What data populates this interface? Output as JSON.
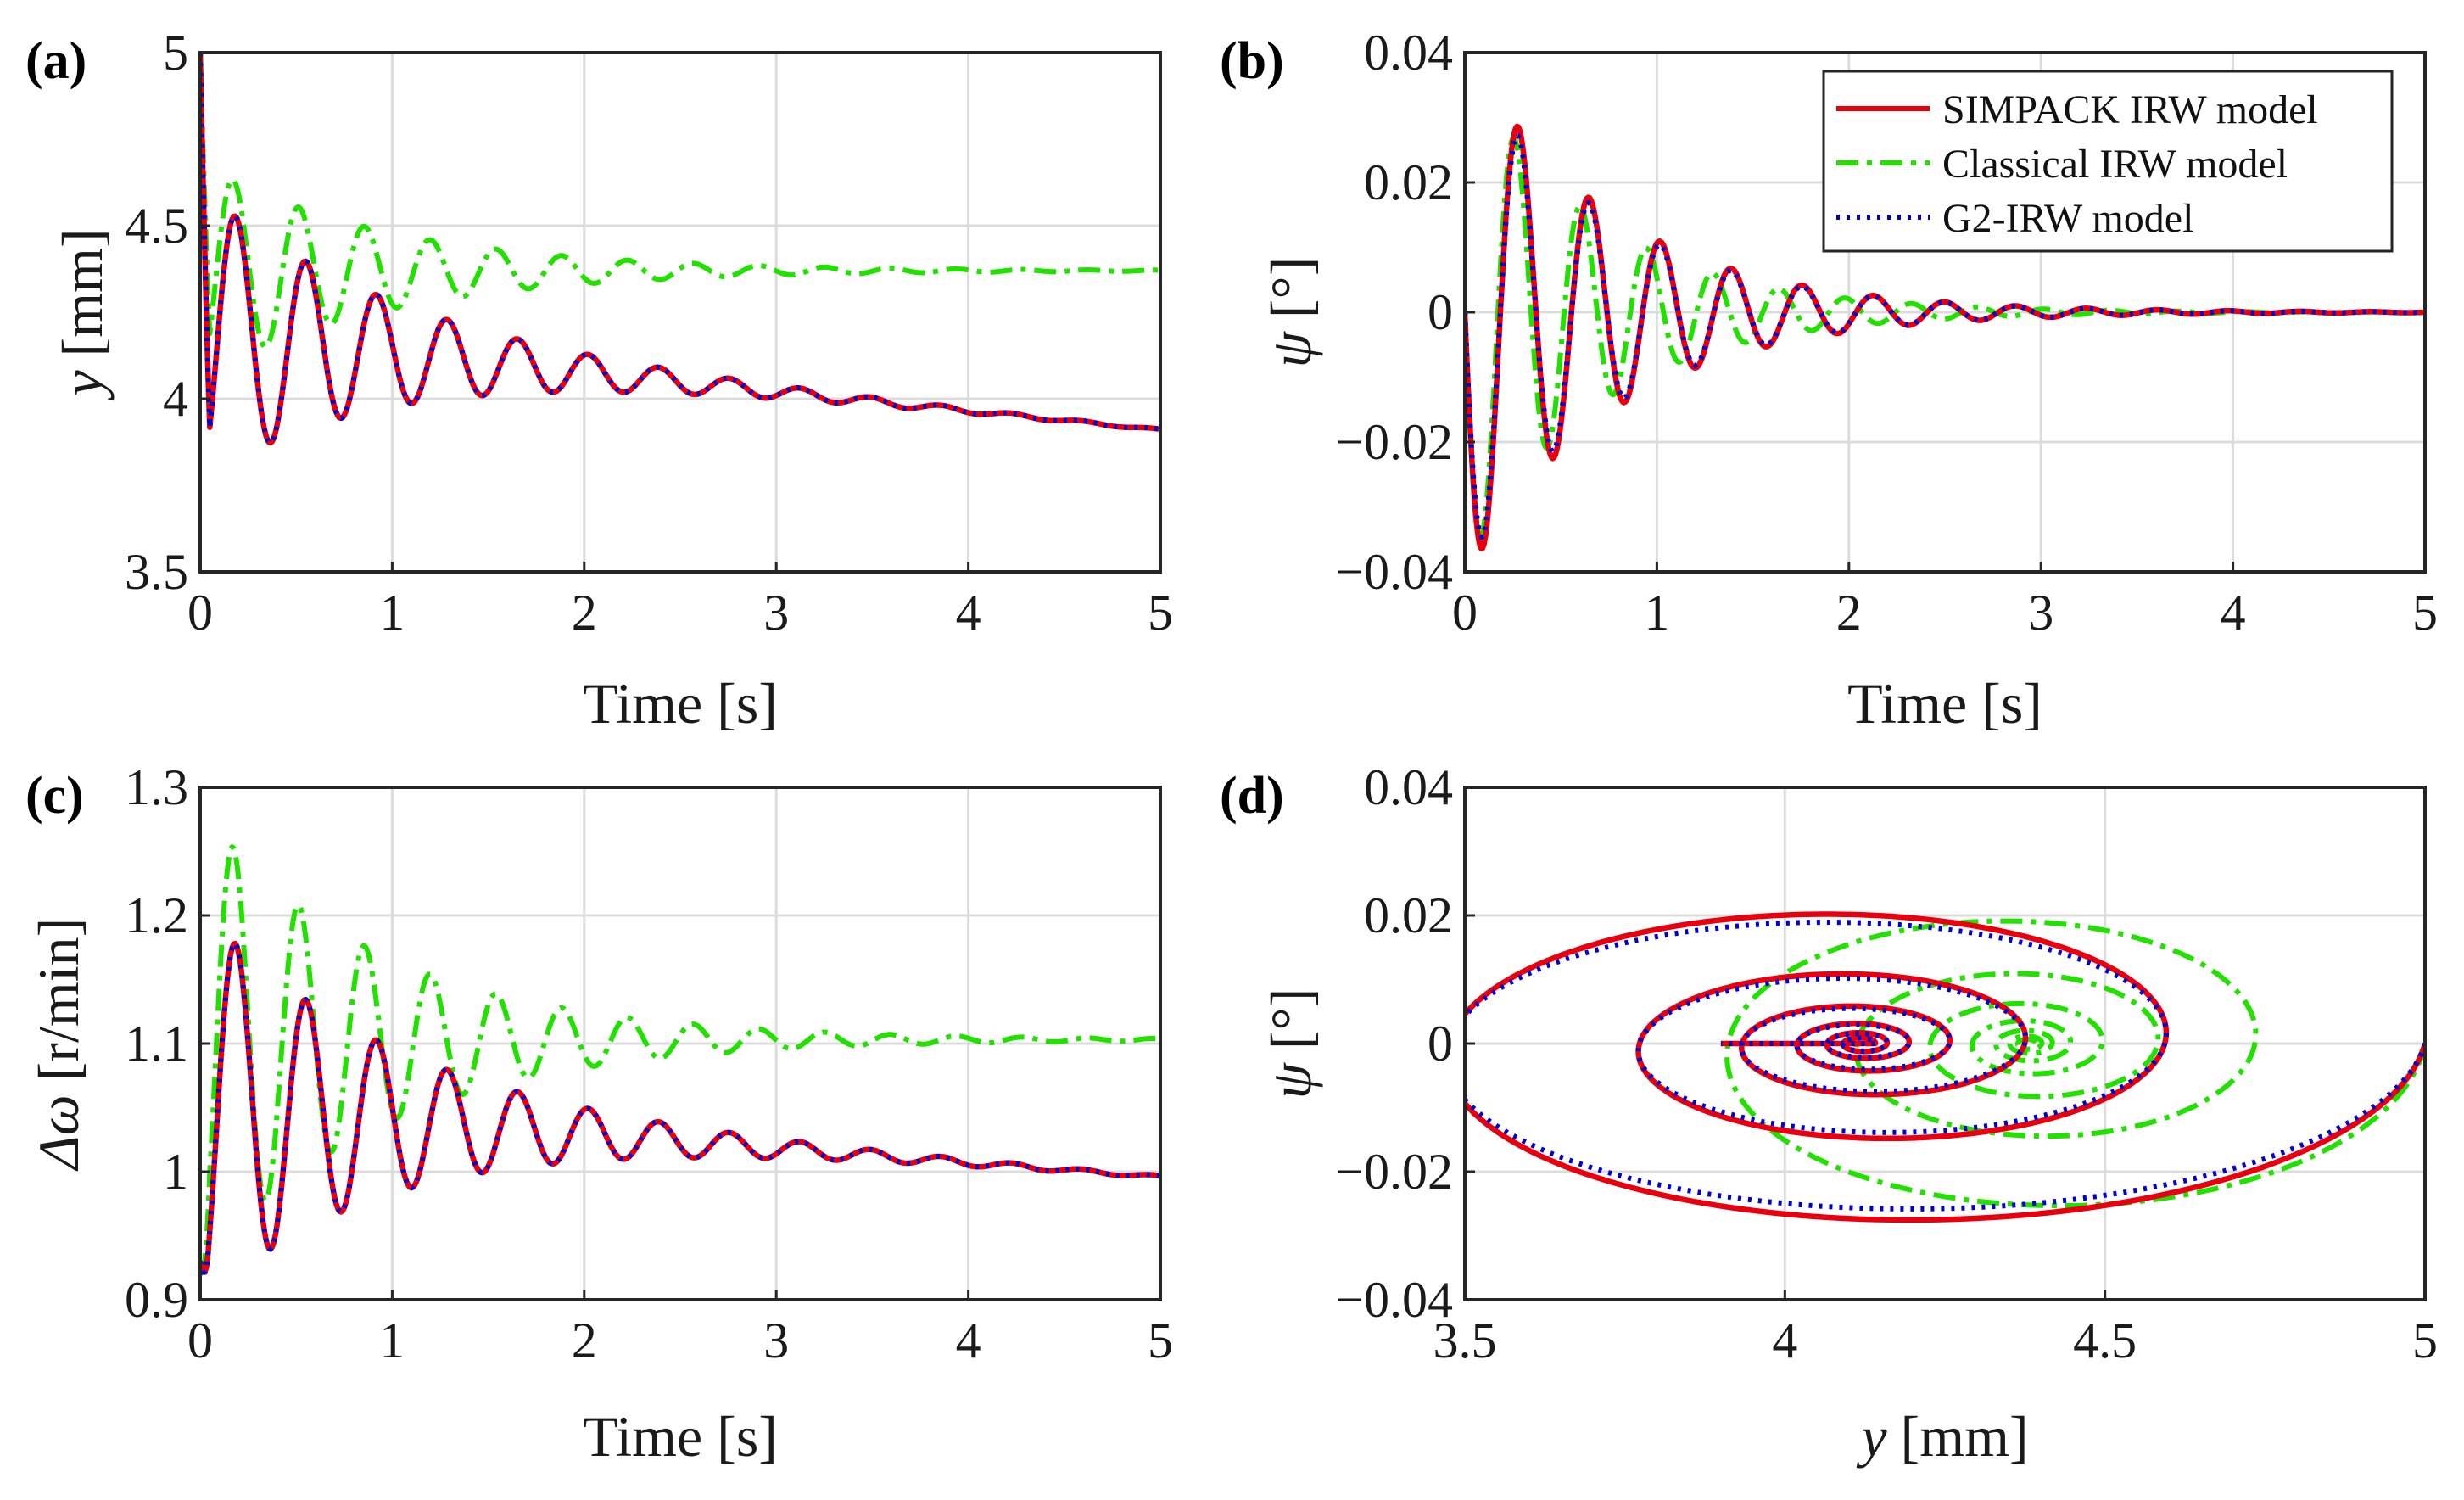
{
  "figure": {
    "panels": [
      {
        "id": "a",
        "label": "(a)"
      },
      {
        "id": "b",
        "label": "(b)"
      },
      {
        "id": "c",
        "label": "(c)"
      },
      {
        "id": "d",
        "label": "(d)"
      }
    ]
  },
  "legend": {
    "entries": [
      {
        "name": "SIMPACK IRW model",
        "color": "#e8000f",
        "style": "solid"
      },
      {
        "name": "Classical IRW model",
        "color": "#22e000",
        "style": "dash-dot"
      },
      {
        "name": "G2-IRW model",
        "color": "#0000d0",
        "style": "dotted"
      }
    ]
  },
  "colors": {
    "simpack": "#e8000f",
    "classical": "#22e000",
    "g2": "#0000d0",
    "grid": "#dcdcdc",
    "axis": "#262626"
  },
  "chart_data": [
    {
      "panel": "(a)",
      "type": "line",
      "xlabel": "Time [s]",
      "ylabel_var": "y",
      "ylabel_unit": "[mm]",
      "xlim": [
        0,
        5
      ],
      "ylim": [
        3.5,
        5
      ],
      "xticks": [
        0,
        1,
        2,
        3,
        4,
        5
      ],
      "xtick_labels": [
        "0",
        "1",
        "2",
        "3",
        "4",
        "5"
      ],
      "yticks": [
        3.5,
        4,
        4.5,
        5
      ],
      "ytick_labels": [
        "3.5",
        "4",
        "4.5",
        "5"
      ],
      "grid": true,
      "series": [
        {
          "name": "SIMPACK IRW model",
          "model": {
            "kind": "damped",
            "t": [
              0,
              5
            ],
            "start": 5.0,
            "end": 3.9,
            "drift": 0.055,
            "base": 4.13,
            "amp": -0.85,
            "freq": 2.72,
            "damp": 1.02,
            "phase": 0.25
          }
        },
        {
          "name": "Classical IRW model",
          "model": {
            "kind": "damped",
            "t": [
              0,
              5
            ],
            "start": 5.0,
            "end": 4.37,
            "drift": 0.0,
            "base": 4.37,
            "amp": -0.63,
            "freq": 2.92,
            "damp": 1.05,
            "phase": 0.2
          }
        },
        {
          "name": "G2-IRW model",
          "model": {
            "kind": "damped",
            "t": [
              0,
              5
            ],
            "start": 5.0,
            "end": 3.9,
            "drift": 0.055,
            "base": 4.13,
            "amp": -0.85,
            "freq": 2.72,
            "damp": 1.02,
            "phase": 0.25
          }
        }
      ]
    },
    {
      "panel": "(b)",
      "type": "line",
      "xlabel": "Time [s]",
      "ylabel_var": "ψ",
      "ylabel_unit": "[°]",
      "xlim": [
        0,
        5
      ],
      "ylim": [
        -0.04,
        0.04
      ],
      "xticks": [
        0,
        1,
        2,
        3,
        4,
        5
      ],
      "xtick_labels": [
        "0",
        "1",
        "2",
        "3",
        "4",
        "5"
      ],
      "yticks": [
        -0.04,
        -0.02,
        0,
        0.02,
        0.04
      ],
      "ytick_labels": [
        "−0.04",
        "−0.02",
        "0",
        "0.02",
        "0.04"
      ],
      "grid": true,
      "legend_position": "top-right",
      "series": [
        {
          "name": "SIMPACK IRW model",
          "model": {
            "kind": "sine",
            "amp": -0.041,
            "freq": 2.7,
            "damp": 1.3
          }
        },
        {
          "name": "Classical IRW model",
          "model": {
            "kind": "sine",
            "amp": -0.039,
            "freq": 2.9,
            "damp": 1.45
          }
        },
        {
          "name": "G2-IRW model",
          "model": {
            "kind": "sine",
            "amp": -0.039,
            "freq": 2.7,
            "damp": 1.3
          }
        }
      ]
    },
    {
      "panel": "(c)",
      "type": "line",
      "xlabel": "Time [s]",
      "ylabel_var": "Δω",
      "ylabel_unit": "[r/min]",
      "xlim": [
        0,
        5
      ],
      "ylim": [
        0.9,
        1.3
      ],
      "xticks": [
        0,
        1,
        2,
        3,
        4,
        5
      ],
      "xtick_labels": [
        "0",
        "1",
        "2",
        "3",
        "4",
        "5"
      ],
      "yticks": [
        0.9,
        1.0,
        1.1,
        1.2,
        1.3
      ],
      "ytick_labels": [
        "0.9",
        "1",
        "1.1",
        "1.2",
        "1.3"
      ],
      "grid": true,
      "series": [
        {
          "name": "SIMPACK IRW model",
          "model": {
            "kind": "damped",
            "t": [
              0,
              5
            ],
            "start": 0.93,
            "end": 0.985,
            "drift": 0.011,
            "base": 1.04,
            "amp": -0.31,
            "freq": 2.72,
            "damp": 1.0,
            "phase": -0.35
          }
        },
        {
          "name": "Classical IRW model",
          "model": {
            "kind": "damped",
            "t": [
              0,
              5
            ],
            "start": 0.92,
            "end": 1.103,
            "drift": 0.0,
            "base": 1.103,
            "amp": -0.36,
            "freq": 2.92,
            "damp": 1.05,
            "phase": -0.35
          }
        },
        {
          "name": "G2-IRW model",
          "model": {
            "kind": "damped",
            "t": [
              0,
              5
            ],
            "start": 0.93,
            "end": 0.987,
            "drift": 0.011,
            "base": 1.04,
            "amp": -0.31,
            "freq": 2.72,
            "damp": 1.0,
            "phase": -0.35
          }
        }
      ]
    },
    {
      "panel": "(d)",
      "type": "line",
      "xlabel_var": "y",
      "xlabel_unit": "[mm]",
      "ylabel_var": "ψ",
      "ylabel_unit": "[°]",
      "xlim": [
        3.5,
        5
      ],
      "ylim": [
        -0.04,
        0.04
      ],
      "xticks": [
        3.5,
        4,
        4.5,
        5
      ],
      "xtick_labels": [
        "3.5",
        "4",
        "4.5",
        "5"
      ],
      "yticks": [
        -0.04,
        -0.02,
        0,
        0.02,
        0.04
      ],
      "ytick_labels": [
        "−0.04",
        "−0.02",
        "0",
        "0.02",
        "0.04"
      ],
      "grid": true,
      "series": [
        {
          "name": "SIMPACK IRW model",
          "model": {
            "kind": "phase",
            "center": [
              4.12,
              0.0
            ],
            "start": [
              5.0,
              0.0
            ],
            "rx": 0.88,
            "ry": 0.032,
            "decay": 0.62,
            "turns": 6,
            "tail_to": 3.9,
            "tilt": 0.28
          }
        },
        {
          "name": "Classical IRW model",
          "model": {
            "kind": "phase",
            "center": [
              4.38,
              0.0
            ],
            "start": [
              5.0,
              0.0
            ],
            "rx": 0.62,
            "ry": 0.029,
            "decay": 0.56,
            "turns": 7,
            "tail_to": 4.38,
            "tilt": 0.24
          }
        },
        {
          "name": "G2-IRW model",
          "model": {
            "kind": "phase",
            "center": [
              4.12,
              0.0
            ],
            "start": [
              5.0,
              0.0
            ],
            "rx": 0.88,
            "ry": 0.03,
            "decay": 0.62,
            "turns": 6,
            "tail_to": 3.9,
            "tilt": 0.28
          }
        }
      ]
    }
  ]
}
